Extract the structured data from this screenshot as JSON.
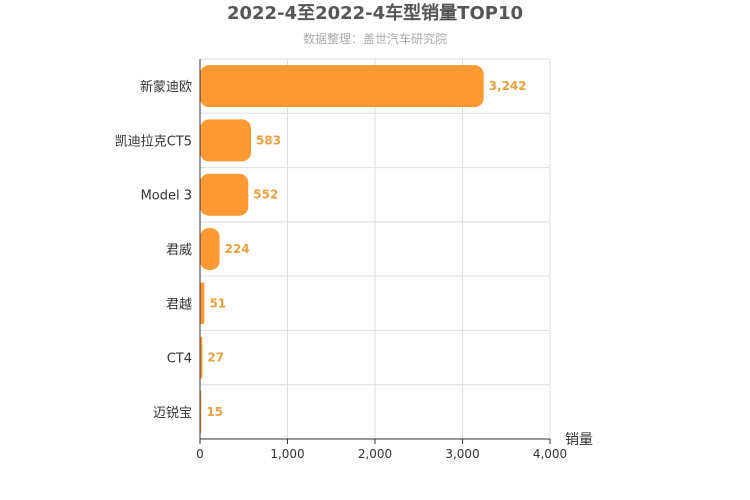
{
  "chart_data": {
    "type": "bar",
    "orientation": "horizontal",
    "title": "2022-4至2022-4车型销量TOP10",
    "subtitle": "数据整理：盖世汽车研究院",
    "xlabel": "销量",
    "ylabel": "",
    "xlim": [
      0,
      4000
    ],
    "xticks": [
      0,
      1000,
      2000,
      3000,
      4000
    ],
    "xtick_labels": [
      "0",
      "1,000",
      "2,000",
      "3,000",
      "4,000"
    ],
    "grid": true,
    "legend": "none",
    "categories": [
      "新蒙迪欧",
      "凯迪拉克CT5",
      "Model 3",
      "君威",
      "君越",
      "CT4",
      "迈锐宝"
    ],
    "values": [
      3242,
      583,
      552,
      224,
      51,
      27,
      15
    ],
    "value_labels": [
      "3,242",
      "583",
      "552",
      "224",
      "51",
      "27",
      "15"
    ],
    "bar_color": "#ff9933"
  }
}
